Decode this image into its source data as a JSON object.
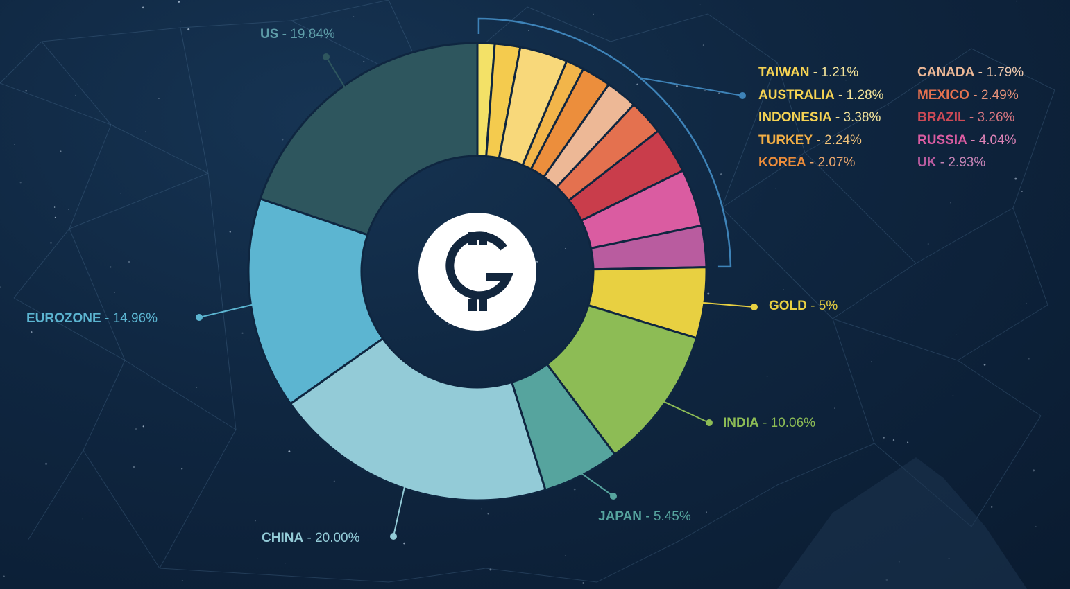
{
  "chart_data": {
    "type": "pie",
    "variant": "donut",
    "slices": [
      {
        "name": "TAIWAN",
        "value": 1.21,
        "label": "1.21%",
        "color": "#F3E167"
      },
      {
        "name": "CANADA",
        "value": 1.79,
        "label": "1.79%",
        "color": "#F4CB4E"
      },
      {
        "name": "INDONESIA",
        "value": 3.38,
        "label": "3.38%",
        "color": "#F8D87A"
      },
      {
        "name": "AUSTRALIA",
        "value": 1.28,
        "label": "1.28%",
        "color": "#F2B54A"
      },
      {
        "name": "KOREA",
        "value": 2.07,
        "label": "2.07%",
        "color": "#EC8E3C"
      },
      {
        "name": "TURKEY",
        "value": 2.24,
        "label": "2.24%",
        "color": "#EDB896"
      },
      {
        "name": "MEXICO",
        "value": 2.49,
        "label": "2.49%",
        "color": "#E4714F"
      },
      {
        "name": "BRAZIL",
        "value": 3.26,
        "label": "3.26%",
        "color": "#C93D4B"
      },
      {
        "name": "RUSSIA",
        "value": 4.04,
        "label": "4.04%",
        "color": "#DA5CA1"
      },
      {
        "name": "UK",
        "value": 2.93,
        "label": "2.93%",
        "color": "#B95C9F"
      },
      {
        "name": "GOLD",
        "value": 5,
        "label": "5%",
        "color": "#E8D041"
      },
      {
        "name": "INDIA",
        "value": 10.06,
        "label": "10.06%",
        "color": "#8DBC55"
      },
      {
        "name": "JAPAN",
        "value": 5.45,
        "label": "5.45%",
        "color": "#56A49E"
      },
      {
        "name": "CHINA",
        "value": 20.0,
        "label": "20.00%",
        "color": "#93CBD7"
      },
      {
        "name": "EUROZONE",
        "value": 14.96,
        "label": "14.96%",
        "color": "#5CB5D1"
      },
      {
        "name": "US",
        "value": 19.84,
        "label": "19.84%",
        "color": "#2E565E"
      }
    ],
    "legend_small": [
      {
        "name": "TAIWAN",
        "label": "1.21%",
        "color": "#F6D353",
        "valcolor": "#F3E39A"
      },
      {
        "name": "AUSTRALIA",
        "label": "1.28%",
        "color": "#F6D353",
        "valcolor": "#F3E39A"
      },
      {
        "name": "INDONESIA",
        "label": "3.38%",
        "color": "#F6D353",
        "valcolor": "#F3E39A"
      },
      {
        "name": "TURKEY",
        "label": "2.24%",
        "color": "#F2AE45",
        "valcolor": "#F0C27A"
      },
      {
        "name": "KOREA",
        "label": "2.07%",
        "color": "#EC8C3A",
        "valcolor": "#EDA86E"
      },
      {
        "name": "CANADA",
        "label": "1.79%",
        "color": "#EDB896",
        "valcolor": "#EFC9AE"
      },
      {
        "name": "MEXICO",
        "label": "2.49%",
        "color": "#E4714F",
        "valcolor": "#E8937A"
      },
      {
        "name": "BRAZIL",
        "label": "3.26%",
        "color": "#CF4A56",
        "valcolor": "#D77580"
      },
      {
        "name": "RUSSIA",
        "label": "4.04%",
        "color": "#DA5CA1",
        "valcolor": "#DF84B8"
      },
      {
        "name": "UK",
        "label": "2.93%",
        "color": "#B95C9F",
        "valcolor": "#C583B5"
      }
    ],
    "callouts": [
      {
        "name": "US",
        "label": "19.84%",
        "color": "#5E9DA8",
        "valcolor": "#5E9DA8"
      },
      {
        "name": "EUROZONE",
        "label": "14.96%",
        "color": "#5CB5D1",
        "valcolor": "#5CB5D1"
      },
      {
        "name": "CHINA",
        "label": "20.00%",
        "color": "#93CBD7",
        "valcolor": "#93CBD7"
      },
      {
        "name": "JAPAN",
        "label": "5.45%",
        "color": "#56A49E",
        "valcolor": "#56A49E"
      },
      {
        "name": "INDIA",
        "label": "10.06%",
        "color": "#8DBC55",
        "valcolor": "#8DBC55"
      },
      {
        "name": "GOLD",
        "label": "5%",
        "color": "#E8D041",
        "valcolor": "#E8D041"
      }
    ],
    "separator": " - ",
    "center_icon": "gcoin-logo-icon",
    "bracket_color": "#3E83B8",
    "background": "#0f2640",
    "network_line_color": "#5D84A8"
  }
}
